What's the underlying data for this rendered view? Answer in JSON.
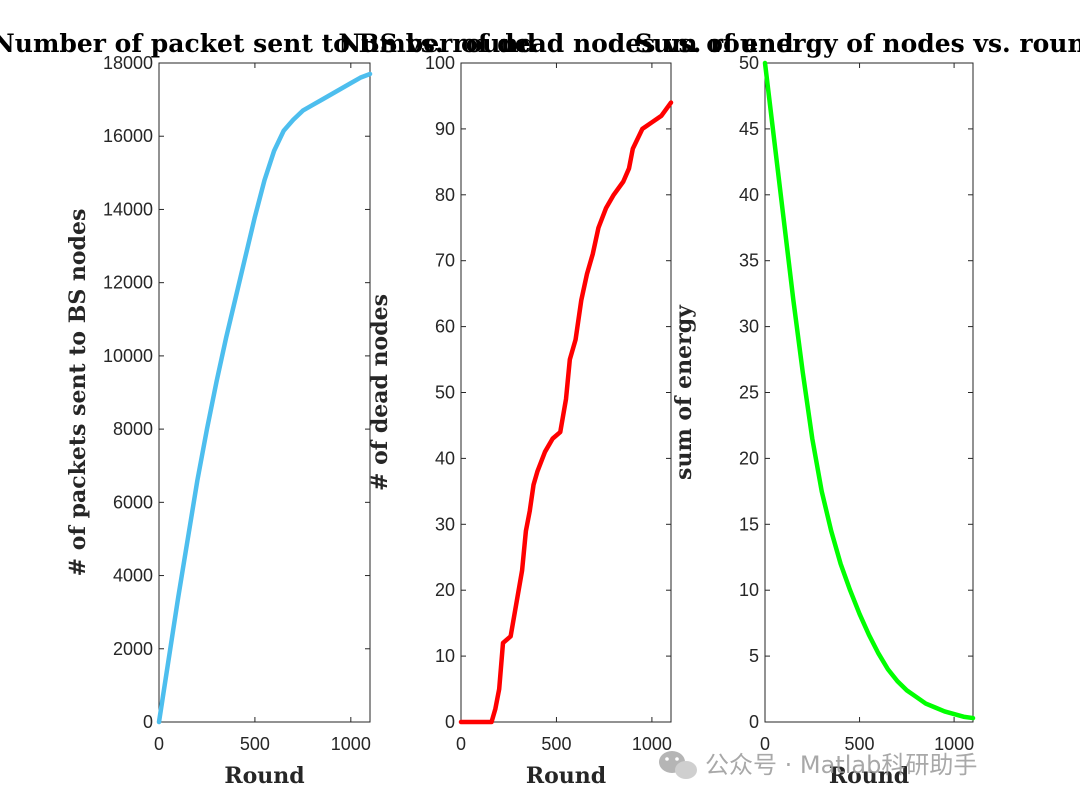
{
  "chart_data": [
    {
      "type": "line",
      "title": "Number of packet sent to BS vs. round",
      "xlabel": "Round",
      "ylabel": "# of packets sent to BS nodes",
      "xlim": [
        0,
        1100
      ],
      "ylim": [
        0,
        18000
      ],
      "xticks": [
        "0",
        "500",
        "1000"
      ],
      "yticks": [
        "0",
        "2000",
        "4000",
        "6000",
        "8000",
        "10000",
        "12000",
        "14000",
        "16000",
        "18000"
      ],
      "grid": false,
      "color": "#4dbeee",
      "series": [
        {
          "x": [
            0,
            50,
            100,
            150,
            200,
            250,
            300,
            350,
            400,
            450,
            500,
            550,
            600,
            650,
            700,
            750,
            800,
            850,
            900,
            950,
            1000,
            1050,
            1100
          ],
          "y": [
            0,
            1700,
            3400,
            5000,
            6600,
            8000,
            9300,
            10500,
            11600,
            12700,
            13800,
            14800,
            15600,
            16150,
            16450,
            16700,
            16850,
            17000,
            17150,
            17300,
            17450,
            17600,
            17700
          ]
        }
      ]
    },
    {
      "type": "line",
      "title": "Number of dead nodes vs. round",
      "xlabel": "Round",
      "ylabel": "# of dead nodes",
      "xlim": [
        0,
        1100
      ],
      "ylim": [
        0,
        100
      ],
      "xticks": [
        "0",
        "500",
        "1000"
      ],
      "yticks": [
        "0",
        "10",
        "20",
        "30",
        "40",
        "50",
        "60",
        "70",
        "80",
        "90",
        "100"
      ],
      "grid": false,
      "color": "#ff0000",
      "series": [
        {
          "x": [
            0,
            160,
            180,
            200,
            220,
            260,
            290,
            320,
            340,
            360,
            380,
            400,
            440,
            480,
            520,
            550,
            570,
            600,
            630,
            660,
            690,
            720,
            760,
            800,
            850,
            880,
            900,
            950,
            1000,
            1050,
            1100
          ],
          "y": [
            0,
            0,
            2,
            5,
            12,
            13,
            18,
            23,
            29,
            32,
            36,
            38,
            41,
            43,
            44,
            49,
            55,
            58,
            64,
            68,
            71,
            75,
            78,
            80,
            82,
            84,
            87,
            90,
            91,
            92,
            94
          ]
        }
      ]
    },
    {
      "type": "line",
      "title": "Sum of energy of nodes vs. round",
      "xlabel": "Round",
      "ylabel": "sum of energy",
      "xlim": [
        0,
        1100
      ],
      "ylim": [
        0,
        50
      ],
      "xticks": [
        "0",
        "500",
        "1000"
      ],
      "yticks": [
        "0",
        "5",
        "10",
        "15",
        "20",
        "25",
        "30",
        "35",
        "40",
        "45",
        "50"
      ],
      "grid": false,
      "color": "#00ff00",
      "series": [
        {
          "x": [
            0,
            50,
            100,
            150,
            200,
            250,
            300,
            350,
            400,
            450,
            500,
            550,
            600,
            650,
            700,
            750,
            800,
            850,
            900,
            950,
            1000,
            1050,
            1100
          ],
          "y": [
            50,
            44,
            38,
            32,
            26.5,
            21.5,
            17.5,
            14.5,
            12,
            10,
            8.2,
            6.6,
            5.2,
            4.0,
            3.1,
            2.4,
            1.9,
            1.4,
            1.1,
            0.8,
            0.6,
            0.4,
            0.3
          ]
        }
      ]
    }
  ],
  "watermark": "公众号 · Matlab科研助手"
}
